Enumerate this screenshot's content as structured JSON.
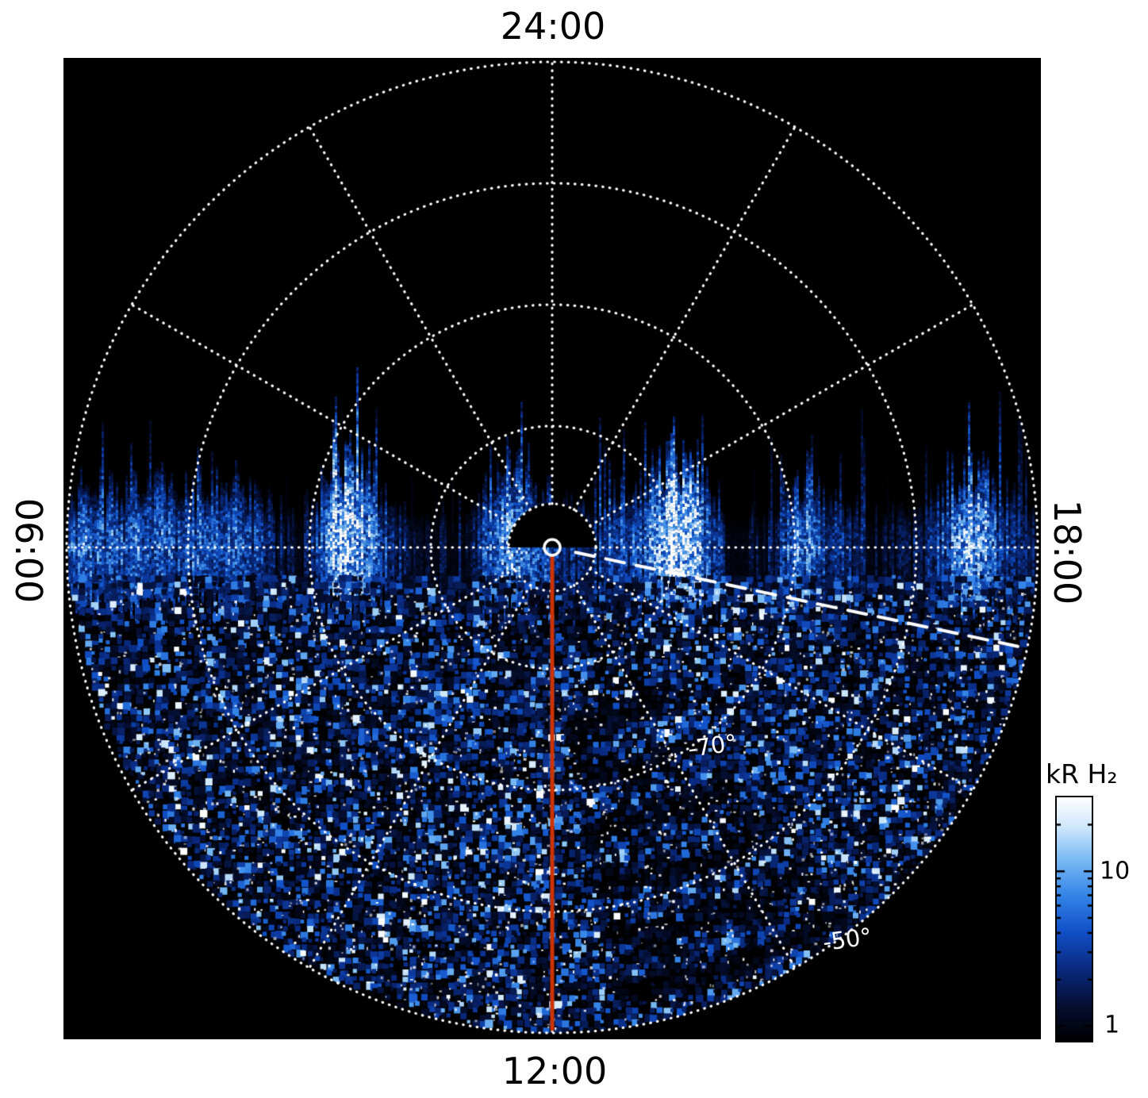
{
  "figure": {
    "time_labels": {
      "top": "24:00",
      "bottom": "12:00",
      "left": "06:00",
      "right": "18:00"
    },
    "latitude_labels": [
      {
        "text": "-70°"
      },
      {
        "text": "-50°"
      }
    ],
    "colorbar": {
      "title": "kR H₂",
      "tick_labels": [
        "10",
        "1"
      ]
    }
  },
  "chart_data": {
    "type": "heatmap",
    "projection": "polar",
    "title": "",
    "description": "Polar-projection map of H2 auroral emission brightness (kR) versus local time and latitude. The upper (nightside) half of the disk contains no data (black); the lower half is filled with speckled blue/white emission, with a bright jagged band of vertical streaks along the dawn-dusk (06:00-18:00) line. A solid red line marks the 12:00 meridian and a white dashed line extends from the pole toward the dusk-side limb. Dotted white polar grid: rings every 10 degrees of latitude and spokes every 2 hours of local time.",
    "angular_axis": {
      "label_type": "local time",
      "labels_clockwise_from_top": [
        "24:00",
        "18:00",
        "12:00",
        "06:00"
      ],
      "spoke_interval_hours": 2
    },
    "radial_axis": {
      "pole_latitude_deg": -90,
      "ring_latitudes_deg": [
        -80,
        -70,
        -60,
        -50
      ],
      "labeled_rings": [
        {
          "latitude_deg": -70,
          "label": "-70°"
        },
        {
          "latitude_deg": -50,
          "label": "-50°"
        }
      ]
    },
    "colorbar": {
      "label": "kR H₂",
      "scale": "log",
      "min": 1,
      "max": 30,
      "tick_values": [
        10,
        1
      ],
      "gradient_stops": [
        {
          "v": 0.0,
          "c": "#000000"
        },
        {
          "v": 0.14,
          "c": "#050e30"
        },
        {
          "v": 0.3,
          "c": "#0a2a80"
        },
        {
          "v": 0.45,
          "c": "#1150c8"
        },
        {
          "v": 0.6,
          "c": "#3585e8"
        },
        {
          "v": 0.75,
          "c": "#7cbcf4"
        },
        {
          "v": 0.88,
          "c": "#cfe7fc"
        },
        {
          "v": 1.0,
          "c": "#ffffff"
        }
      ]
    },
    "overlays": {
      "red_meridian_line": {
        "color": "#cc3300",
        "local_time": "12:00"
      },
      "dashed_line": {
        "color": "#ffffff",
        "angle_deg_below_horizontal_from_center": 12
      },
      "center_marker": {
        "shape": "circle",
        "color": "#ffffff"
      },
      "grid": {
        "color": "#ffffff",
        "style": "dotted"
      }
    },
    "render": {
      "seed": 1337,
      "bright_patch_fractions": [
        0.285,
        0.635
      ],
      "plot_background": "#000000",
      "page_background": "#ffffff"
    }
  }
}
